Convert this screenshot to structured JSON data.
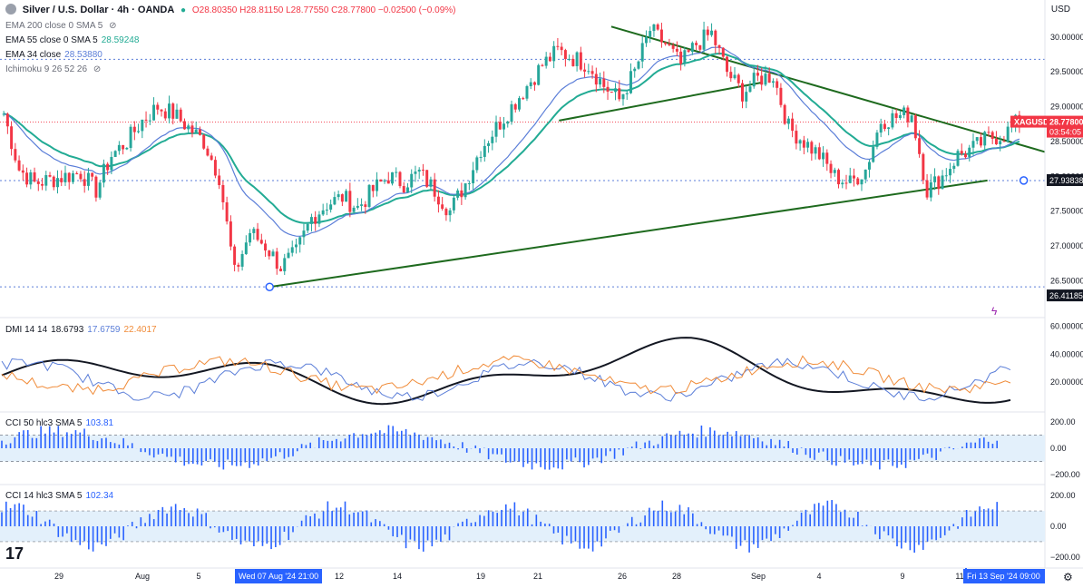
{
  "header": {
    "symbol_title": "Silver / U.S. Dollar · 4h · OANDA",
    "ohlc": "O28.80350 H28.81150 L28.77550 C28.77800 −0.02500 (−0.09%)",
    "currency": "USD"
  },
  "legend": {
    "ema200": "EMA 200 close 0 SMA 5",
    "ema55_label": "EMA 55 close 0 SMA 5",
    "ema55_value": "28.59248",
    "ema34_label": "EMA 34 close",
    "ema34_value": "28.53880",
    "ichimoku": "Ichimoku 9 26 52 26"
  },
  "price_axis": {
    "ticks": [
      "30.00000",
      "29.50000",
      "29.00000",
      "28.50000",
      "28.00000",
      "27.50000",
      "27.00000",
      "26.50000"
    ],
    "tags": {
      "symbol": "XAGUSD",
      "last": "28.77800",
      "countdown": "03:54:05",
      "resistance": "27.93838",
      "support": "26.41185"
    }
  },
  "dmi": {
    "label": "DMI 14 14",
    "adx": "18.6793",
    "plus_di": "17.6759",
    "minus_di": "22.4017",
    "ticks": [
      "60.00000",
      "40.00000",
      "20.00000"
    ]
  },
  "cci50": {
    "label": "CCI 50 hlc3 SMA 5",
    "value": "103.81",
    "ticks": [
      "200.00",
      "0.00",
      "−200.00"
    ]
  },
  "cci14": {
    "label": "CCI 14 hlc3 SMA 5",
    "value": "102.34",
    "ticks": [
      "200.00",
      "0.00",
      "−200.00"
    ]
  },
  "time_axis": {
    "labels": [
      "29",
      "Aug",
      "5",
      "12",
      "14",
      "19",
      "21",
      "26",
      "28",
      "Sep",
      "4",
      "9",
      "11"
    ],
    "cursor_left": "Wed 07 Aug '24   21:00",
    "cursor_right": "Fri 13 Sep '24   09:00"
  },
  "chart_data": {
    "type": "candlestick",
    "ylim": [
      26.1,
      30.35
    ],
    "close_path": [
      28.9,
      28.1,
      27.9,
      27.95,
      28.0,
      28.05,
      27.8,
      28.3,
      28.5,
      28.8,
      29.0,
      28.9,
      28.7,
      28.5,
      28.0,
      26.6,
      27.2,
      27.0,
      26.7,
      26.9,
      27.4,
      27.6,
      27.7,
      27.55,
      27.8,
      28.0,
      27.9,
      28.05,
      27.8,
      27.5,
      27.9,
      28.4,
      28.7,
      29.0,
      29.3,
      29.6,
      29.8,
      29.7,
      29.6,
      29.3,
      29.1,
      29.5,
      30.1,
      29.9,
      29.6,
      29.9,
      30.05,
      29.5,
      29.2,
      29.4,
      29.45,
      28.7,
      28.5,
      28.3,
      28.0,
      27.9,
      28.1,
      28.8,
      28.85,
      28.9,
      27.8,
      28.0,
      28.3,
      28.4,
      28.55,
      28.6,
      28.8
    ],
    "trendlines": [
      {
        "name": "descending resistance",
        "from": [
          0.585,
          30.15
        ],
        "to": [
          1.0,
          28.35
        ]
      },
      {
        "name": "ascending support",
        "from": [
          0.258,
          26.41
        ],
        "to": [
          0.945,
          27.94
        ]
      },
      {
        "name": "short support",
        "from": [
          0.535,
          28.8
        ],
        "to": [
          0.73,
          29.35
        ]
      }
    ],
    "levels": {
      "resistance": 27.93838,
      "support": 26.41185,
      "upper": 29.68
    },
    "colors": {
      "up": "#26a69a",
      "down": "#f23645",
      "ema55": "#22ab94",
      "ema34": "#5b7ed8",
      "trend": "#1e6a1e",
      "adx": "#131722",
      "plus_di": "#5b7ed8",
      "minus_di": "#f08c3a",
      "cci_fill": "#e3f0fb",
      "cci_bar": "#2962ff"
    }
  }
}
